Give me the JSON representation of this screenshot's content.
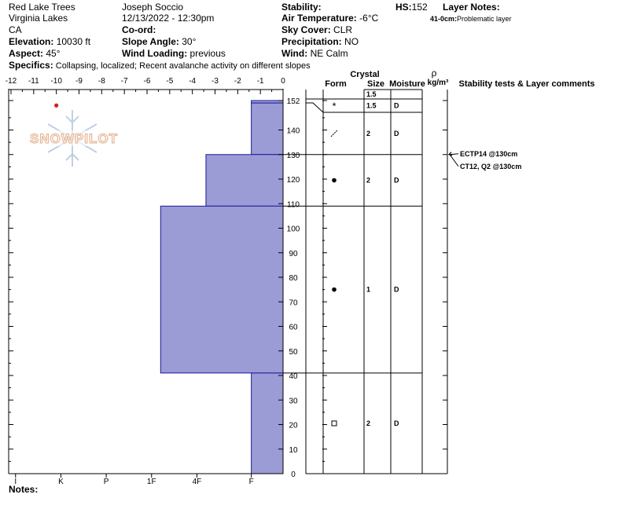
{
  "header": {
    "location": "Red Lake Trees",
    "region": "Virginia Lakes",
    "state": "CA",
    "elevation_label": "Elevation:",
    "elevation_value": "10030 ft",
    "aspect_label": "Aspect:",
    "aspect_value": "45°",
    "observer": "Joseph Soccio",
    "datetime": "12/13/2022 - 12:30pm",
    "coord_label": "Co-ord:",
    "slope_label": "Slope Angle:",
    "slope_value": "30°",
    "wind_loading_label": "Wind Loading:",
    "wind_loading_value": "previous",
    "stability_label": "Stability:",
    "air_temp_label": "Air Temperature:",
    "air_temp_value": "-6°C",
    "sky_label": "Sky Cover:",
    "sky_value": "CLR",
    "precip_label": "Precipitation:",
    "precip_value": "NO",
    "wind_label": "Wind:",
    "wind_value": "NE Calm",
    "hs_label": "HS:",
    "hs_value": "152",
    "layer_notes_label": "Layer Notes:",
    "layer_note": "41-0cm:",
    "layer_note_text": "Problematic layer",
    "specifics_label": "Specifics:",
    "specifics_value": "Collapsing, localized; Recent avalanche activity on different slopes"
  },
  "logo": {
    "text": "SNOWPILOT"
  },
  "columns": {
    "crystal": "Crystal",
    "form": "Form",
    "size": "Size",
    "moisture": "Moisture",
    "rho": "ρ",
    "density_unit": "kg/m³",
    "comments": "Stability tests & Layer comments"
  },
  "notes_label": "Notes:",
  "colors": {
    "hardness_fill": "#9b9bd6",
    "hardness_stroke": "#1a1a9a",
    "temp_point": "#cc2222"
  },
  "chart_data": {
    "type": "snow-profile",
    "temperature_axis": {
      "ticks": [
        "-12",
        "-11",
        "-10",
        "-9",
        "-8",
        "-7",
        "-6",
        "-5",
        "-4",
        "-3",
        "-2",
        "-1",
        "0"
      ],
      "range": [
        -12,
        0
      ]
    },
    "hardness_axis": {
      "labels": [
        "I",
        "K",
        "P",
        "1F",
        "4F",
        "F"
      ]
    },
    "depth_axis": {
      "ticks": [
        "0",
        "10",
        "20",
        "30",
        "40",
        "50",
        "60",
        "70",
        "80",
        "90",
        "100",
        "110",
        "120",
        "130",
        "140",
        "152"
      ],
      "range": [
        0,
        152
      ]
    },
    "temperature_points": [
      {
        "depth": 150,
        "temp": -10
      }
    ],
    "layers": [
      {
        "top": 152,
        "bottom": 151,
        "hardness": 1.4
      },
      {
        "top": 151,
        "bottom": 130,
        "hardness": 1.4
      },
      {
        "top": 130,
        "bottom": 109,
        "hardness": 3.4
      },
      {
        "top": 109,
        "bottom": 41,
        "hardness": 5.4
      },
      {
        "top": 41,
        "bottom": 0,
        "hardness": 1.4
      }
    ],
    "grain_rows": [
      {
        "top": 152,
        "bottom": 151,
        "form": "",
        "size": "1.5",
        "moisture": ""
      },
      {
        "top": 151,
        "bottom": 146,
        "form": "*",
        "size": "1.5",
        "moisture": "D"
      },
      {
        "top": 146,
        "bottom": 130,
        "form": "/",
        "size": "2",
        "moisture": "D"
      },
      {
        "top": 130,
        "bottom": 109,
        "form": "●",
        "size": "2",
        "moisture": "D"
      },
      {
        "top": 109,
        "bottom": 41,
        "form": "●",
        "size": "1",
        "moisture": "D"
      },
      {
        "top": 41,
        "bottom": 0,
        "form": "□",
        "size": "2",
        "moisture": "D"
      }
    ],
    "stability_tests": [
      {
        "depth": 130,
        "label": "ECTP14 @130cm"
      },
      {
        "depth": 130,
        "label": "CT12, Q2 @130cm"
      }
    ]
  }
}
